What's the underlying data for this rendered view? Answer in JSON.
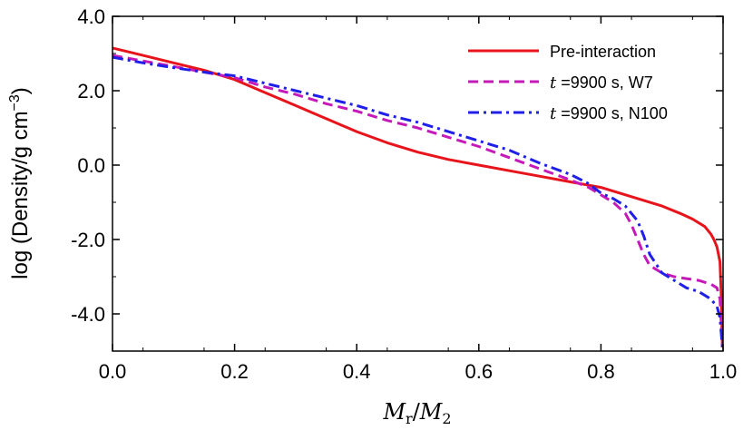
{
  "chart_data": {
    "type": "line",
    "title": "",
    "xlabel": "M_r/M_2",
    "xlabel_parts": {
      "m1": "M",
      "s1": "r",
      "slash": "/",
      "m2": "M",
      "s2": "2"
    },
    "ylabel": "log (Density/g cm^-3)",
    "ylabel_parts": {
      "main": "log (Density/g cm",
      "sup": "−3",
      "close": ")"
    },
    "xlim": [
      0.0,
      1.0
    ],
    "ylim": [
      -5.0,
      4.0
    ],
    "xticks": [
      0.0,
      0.2,
      0.4,
      0.6,
      0.8,
      1.0
    ],
    "xtick_labels": [
      "0.0",
      "0.2",
      "0.4",
      "0.6",
      "0.8",
      "1.0"
    ],
    "yticks": [
      4.0,
      2.0,
      0.0,
      -2.0,
      -4.0
    ],
    "ytick_labels": [
      "4.0",
      "2.0",
      "0.0",
      "-2.0",
      "-4.0"
    ],
    "legend_position": "top-right",
    "grid": false,
    "series": [
      {
        "name": "Pre-interaction",
        "color": "#e8141c",
        "style": "solid",
        "legend": {
          "italic": "",
          "text": "Pre-interaction"
        },
        "x": [
          0.0,
          0.05,
          0.1,
          0.15,
          0.2,
          0.25,
          0.3,
          0.35,
          0.4,
          0.45,
          0.5,
          0.55,
          0.6,
          0.65,
          0.7,
          0.75,
          0.8,
          0.85,
          0.9,
          0.93,
          0.95,
          0.97,
          0.98,
          0.985,
          0.99,
          0.995,
          0.997,
          0.999
        ],
        "y": [
          3.15,
          2.95,
          2.75,
          2.55,
          2.3,
          1.95,
          1.6,
          1.25,
          0.9,
          0.6,
          0.35,
          0.15,
          0.0,
          -0.15,
          -0.3,
          -0.45,
          -0.6,
          -0.85,
          -1.1,
          -1.3,
          -1.45,
          -1.65,
          -1.85,
          -2.0,
          -2.2,
          -2.6,
          -3.5,
          -4.9
        ]
      },
      {
        "name": "t = 9900 s, W7",
        "color": "#c41ab8",
        "style": "dashed",
        "legend": {
          "italic": "t",
          "text": " =9900 s, W7"
        },
        "x": [
          0.0,
          0.05,
          0.1,
          0.15,
          0.2,
          0.25,
          0.3,
          0.35,
          0.4,
          0.45,
          0.5,
          0.55,
          0.6,
          0.65,
          0.7,
          0.75,
          0.78,
          0.8,
          0.82,
          0.84,
          0.85,
          0.86,
          0.87,
          0.88,
          0.9,
          0.92,
          0.94,
          0.96,
          0.98,
          0.99,
          0.995,
          0.999
        ],
        "y": [
          2.95,
          2.8,
          2.65,
          2.5,
          2.35,
          2.1,
          1.9,
          1.65,
          1.45,
          1.2,
          1.0,
          0.75,
          0.5,
          0.2,
          -0.1,
          -0.4,
          -0.6,
          -0.8,
          -1.0,
          -1.3,
          -1.6,
          -2.0,
          -2.4,
          -2.7,
          -2.9,
          -3.0,
          -3.05,
          -3.1,
          -3.2,
          -3.3,
          -3.6,
          -4.9
        ]
      },
      {
        "name": "t = 9900 s, N100",
        "color": "#1f1fe8",
        "style": "dashdot",
        "legend": {
          "italic": "t",
          "text": " =9900 s, N100"
        },
        "x": [
          0.0,
          0.05,
          0.1,
          0.15,
          0.2,
          0.25,
          0.3,
          0.35,
          0.4,
          0.45,
          0.5,
          0.55,
          0.6,
          0.65,
          0.7,
          0.75,
          0.78,
          0.8,
          0.82,
          0.84,
          0.86,
          0.87,
          0.88,
          0.9,
          0.92,
          0.94,
          0.96,
          0.98,
          0.99,
          0.995,
          0.999
        ],
        "y": [
          2.9,
          2.75,
          2.62,
          2.5,
          2.4,
          2.2,
          2.0,
          1.8,
          1.6,
          1.35,
          1.15,
          0.9,
          0.65,
          0.4,
          0.05,
          -0.25,
          -0.5,
          -0.75,
          -0.9,
          -1.1,
          -1.5,
          -1.9,
          -2.4,
          -2.9,
          -3.1,
          -3.3,
          -3.4,
          -3.6,
          -3.8,
          -4.1,
          -4.9
        ]
      }
    ]
  }
}
